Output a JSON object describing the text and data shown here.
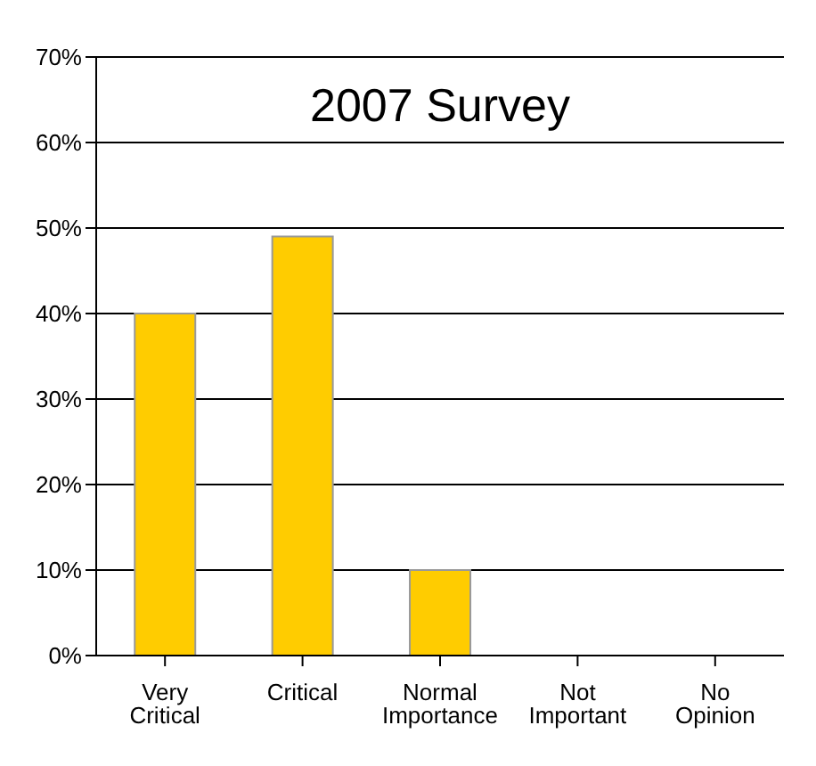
{
  "chart_data": {
    "type": "bar",
    "title": "2007 Survey",
    "categories": [
      "Very Critical",
      "Critical",
      "Normal Importance",
      "Not Important",
      "No Opinion"
    ],
    "values": [
      40,
      49,
      10,
      0,
      0
    ],
    "color": "#ffcc00",
    "ylim": [
      0,
      70
    ],
    "yticks": [
      {
        "value": 0,
        "label": "0%"
      },
      {
        "value": 10,
        "label": "10%"
      },
      {
        "value": 20,
        "label": "20%"
      },
      {
        "value": 30,
        "label": "30%"
      },
      {
        "value": 40,
        "label": "40%"
      },
      {
        "value": 50,
        "label": "50%"
      },
      {
        "value": 60,
        "label": "60%"
      },
      {
        "value": 70,
        "label": "70%"
      }
    ],
    "grid": "y",
    "legend": false
  }
}
